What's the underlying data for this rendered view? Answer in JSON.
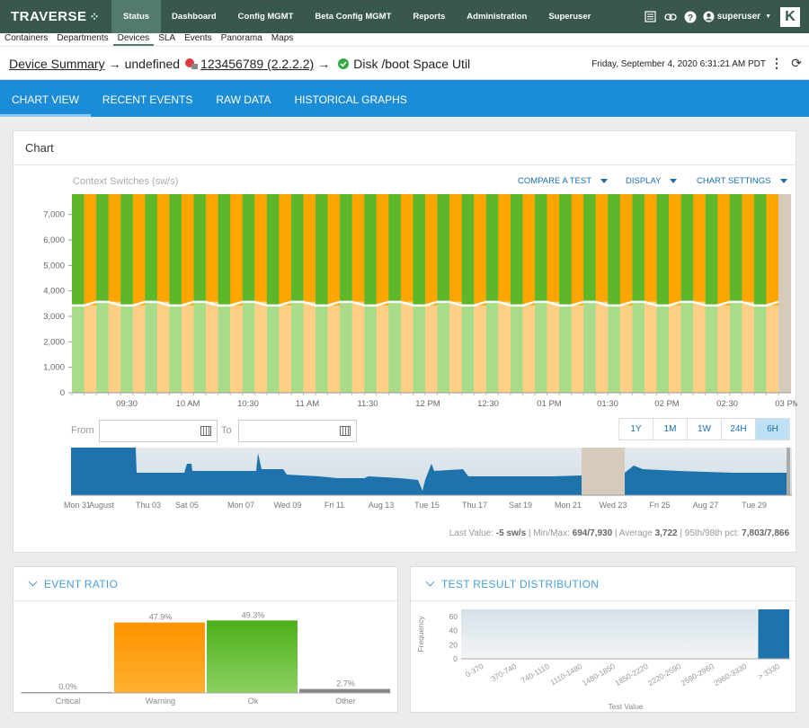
{
  "app": {
    "logo": "TRAVERSE"
  },
  "nav": {
    "items": [
      "Status",
      "Dashboard",
      "Config MGMT",
      "Beta Config MGMT",
      "Reports",
      "Administration",
      "Superuser"
    ],
    "active": 0
  },
  "topright": {
    "user": "superuser",
    "k": "K"
  },
  "subnav": {
    "items": [
      "Containers",
      "Departments",
      "Devices",
      "SLA",
      "Events",
      "Panorama",
      "Maps"
    ],
    "active": 2
  },
  "header": {
    "crumb1": "Device Summary",
    "arrow": "→",
    "crumb2": "undefined",
    "crumb3": "123456789 (2.2.2.2)",
    "crumb4": "Disk /boot Space Util",
    "datetime": "Friday, September 4, 2020 6:31:21 AM PDT"
  },
  "tabs": {
    "items": [
      "CHART VIEW",
      "RECENT EVENTS",
      "RAW DATA",
      "HISTORICAL GRAPHS"
    ],
    "active": 0
  },
  "chart_card": {
    "title": "Chart",
    "subtitle": "Context Switches (sw/s)",
    "menus": [
      "COMPARE A TEST",
      "DISPLAY",
      "CHART SETTINGS"
    ],
    "from_label": "From",
    "to_label": "To",
    "zoom": [
      "1Y",
      "1M",
      "1W",
      "24H",
      "6H"
    ],
    "zoom_active": 4,
    "stats": {
      "l1": "Last Value: ",
      "v1": "-5 sw/s",
      "l2": " | Min/Max: ",
      "v2": "694/7,930",
      "l3": " | Average ",
      "v3": "3,722",
      "l4": " | 95th/98th pct: ",
      "v4": "7,803/7,866"
    }
  },
  "event_ratio": {
    "title": "EVENT RATIO"
  },
  "test_dist": {
    "title": "TEST RESULT DISTRIBUTION"
  },
  "colors": {
    "orange": "#ffa500",
    "green": "#5cb82a",
    "blue_nav": "#1a6fb0",
    "tab_blue": "#1a8cd8"
  },
  "chart_data": [
    {
      "type": "bar",
      "ylabel": "",
      "ylim": [
        0,
        7800
      ],
      "yticks": [
        0,
        "1,000",
        "2,000",
        "3,000",
        "4,000",
        "5,000",
        "6,000",
        "7,000"
      ],
      "xticks": [
        "09:30",
        "10 AM",
        "10:30",
        "11 AM",
        "11:30",
        "12 PM",
        "12:30",
        "01 PM",
        "01:30",
        "02 PM",
        "02:30",
        "03 PM"
      ],
      "series": [
        {
          "name": "",
          "values": [
            3500
          ]
        },
        {
          "name": "",
          "values": [
            7800
          ]
        }
      ]
    },
    {
      "type": "area",
      "xticks": [
        "Mon 31",
        "August",
        "Thu 03",
        "Sat 05",
        "Mon 07",
        "Wed 09",
        "Fri 11",
        "Aug 13",
        "Tue 15",
        "Thu 17",
        "Sat 19",
        "Mon 21",
        "Wed 23",
        "Fri 25",
        "Aug 27",
        "Tue 29"
      ]
    },
    {
      "type": "bar",
      "categories": [
        "Critical",
        "Warning",
        "Ok",
        "Other"
      ],
      "values": [
        0.0,
        47.9,
        49.3,
        2.7
      ],
      "labels": [
        "0.0%",
        "47.9%",
        "49.3%",
        "2.7%"
      ]
    },
    {
      "type": "bar",
      "categories": [
        "0-370",
        "370-740",
        "740-1110",
        "1110-1480",
        "1480-1850",
        "1850-2220",
        "2220-2590",
        "2590-2960",
        "2960-3330",
        "> 3330"
      ],
      "values": [
        0,
        0,
        0,
        0,
        0,
        0,
        0,
        0,
        0,
        70
      ],
      "yticks": [
        0,
        20,
        40,
        60
      ],
      "ylim": [
        0,
        70
      ],
      "xlabel": "Test Value",
      "ylabel": "Frequency"
    }
  ]
}
